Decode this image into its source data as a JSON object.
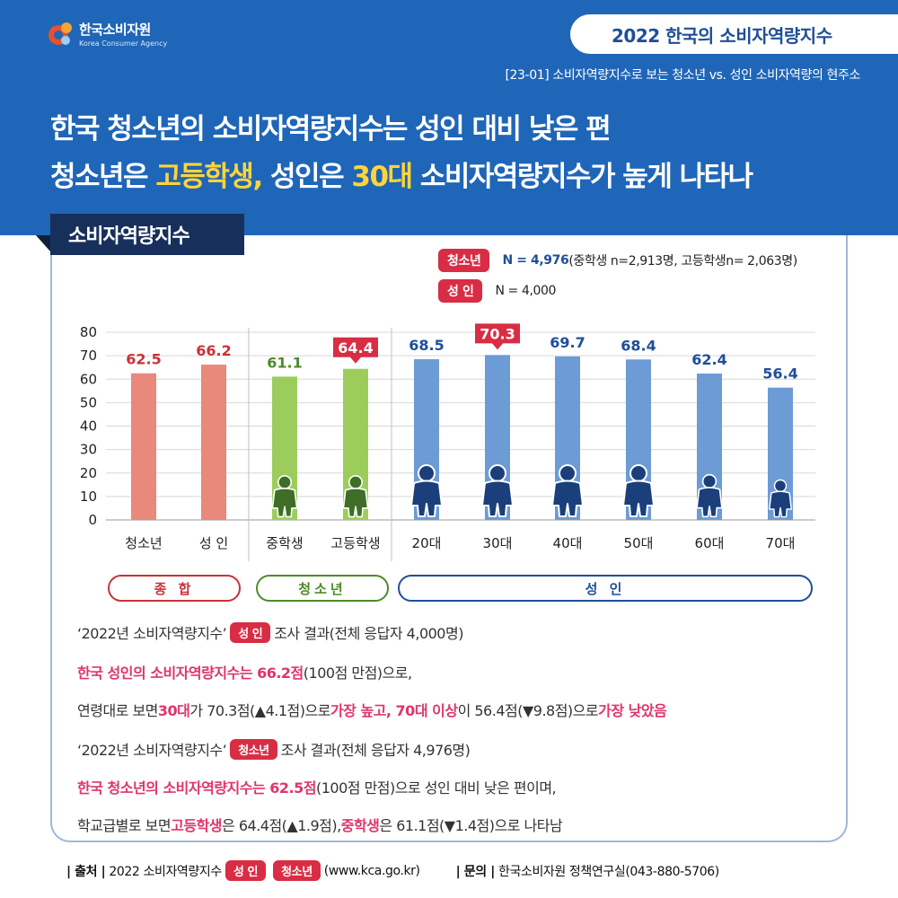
{
  "header": {
    "logo_ko": "한국소비자원",
    "logo_en": "Korea Consumer Agency",
    "pill": "2022 한국의 소비자역량지수",
    "subline": "[23-01] 소비자역량지수로 보는 청소년  vs. 성인 소비자역량의 현주소",
    "headline1": "한국 청소년의 소비자역량지수는 성인 대비 낮은 편",
    "headline2_a": "청소년은 ",
    "headline2_b": "고등학생,",
    "headline2_c": " 성인은 ",
    "headline2_d": "30대",
    "headline2_e": " 소비자역량지수가 높게 나타나"
  },
  "section_tab": "소비자역량지수",
  "legend": {
    "youth_badge": "청소년",
    "youth_n": "N = 4,976",
    "youth_detail": "(중학생 n=2,913명, 고등학생n= 2,063명)",
    "adult_badge": "성  인",
    "adult_n": "N = 4,000"
  },
  "groups": {
    "total": "종 합",
    "youth": "청소년",
    "adult": "성 인"
  },
  "colors": {
    "total": "#e8897b",
    "youth": "#9ccd5c",
    "adult": "#6c9bd6",
    "total_label": "#c8323a",
    "youth_label": "#4e8a2a",
    "adult_label": "#1f4f98",
    "highlight": "#d82d44"
  },
  "chart_data": {
    "type": "bar",
    "categories": [
      "청소년",
      "성  인",
      "중학생",
      "고등학생",
      "20대",
      "30대",
      "40대",
      "50대",
      "60대",
      "70대"
    ],
    "values": [
      62.5,
      66.2,
      61.1,
      64.4,
      68.5,
      70.3,
      69.7,
      68.4,
      62.4,
      56.4
    ],
    "value_labels": [
      "62.5",
      "66.2",
      "61.1",
      "64.4",
      "68.5",
      "70.3",
      "69.7",
      "68.4",
      "62.4",
      "56.4"
    ],
    "group": [
      "total",
      "total",
      "youth",
      "youth",
      "adult",
      "adult",
      "adult",
      "adult",
      "adult",
      "adult"
    ],
    "highlighted": [
      3,
      5
    ],
    "ylim": [
      0,
      80
    ],
    "yticks": [
      0,
      10,
      20,
      30,
      40,
      50,
      60,
      70,
      80
    ],
    "ytick_labels": [
      "0",
      "10",
      "20",
      "30",
      "40",
      "50",
      "60",
      "70",
      "80"
    ],
    "grid": true
  },
  "notes": {
    "l1_a": "‘2022년 소비자역량지수’",
    "l1_badge": "성  인",
    "l1_b": "조사 결과(전체 응답자 4,000명)",
    "l2_a": "한국 성인의 소비자역량지수는 66.2점",
    "l2_b": "(100점 만점)으로,",
    "l3_a": "연령대로 보면 ",
    "l3_b": "30대",
    "l3_c": "가 70.3점(▲4.1점)으로 ",
    "l3_d": "가장 높고, 70대 이상",
    "l3_e": "이 56.4점(▼9.8점)으로 ",
    "l3_f": "가장 낮았음",
    "l4_a": "‘2022년 소비자역량지수’",
    "l4_badge": "청소년",
    "l4_b": "조사 결과(전체 응답자 4,976명)",
    "l5_a": "한국 청소년의 소비자역량지수는 62.5점",
    "l5_b": "(100점 만점)으로 성인 대비 낮은 편이며,",
    "l6_a": "학교급별로 보면 ",
    "l6_b": "고등학생",
    "l6_c": "은 64.4점(▲1.9점), ",
    "l6_d": "중학생",
    "l6_e": "은 61.1점(▼1.4점)으로 나타남"
  },
  "footer": {
    "source_label": "| 출처 |",
    "source_text": "2022 소비자역량지수",
    "badge_adult": "성  인",
    "badge_youth": "청소년",
    "source_url": "(www.kca.go.kr)",
    "contact_label": "| 문의 |",
    "contact_text": "한국소비자원 정책연구실(043-880-5706)"
  }
}
